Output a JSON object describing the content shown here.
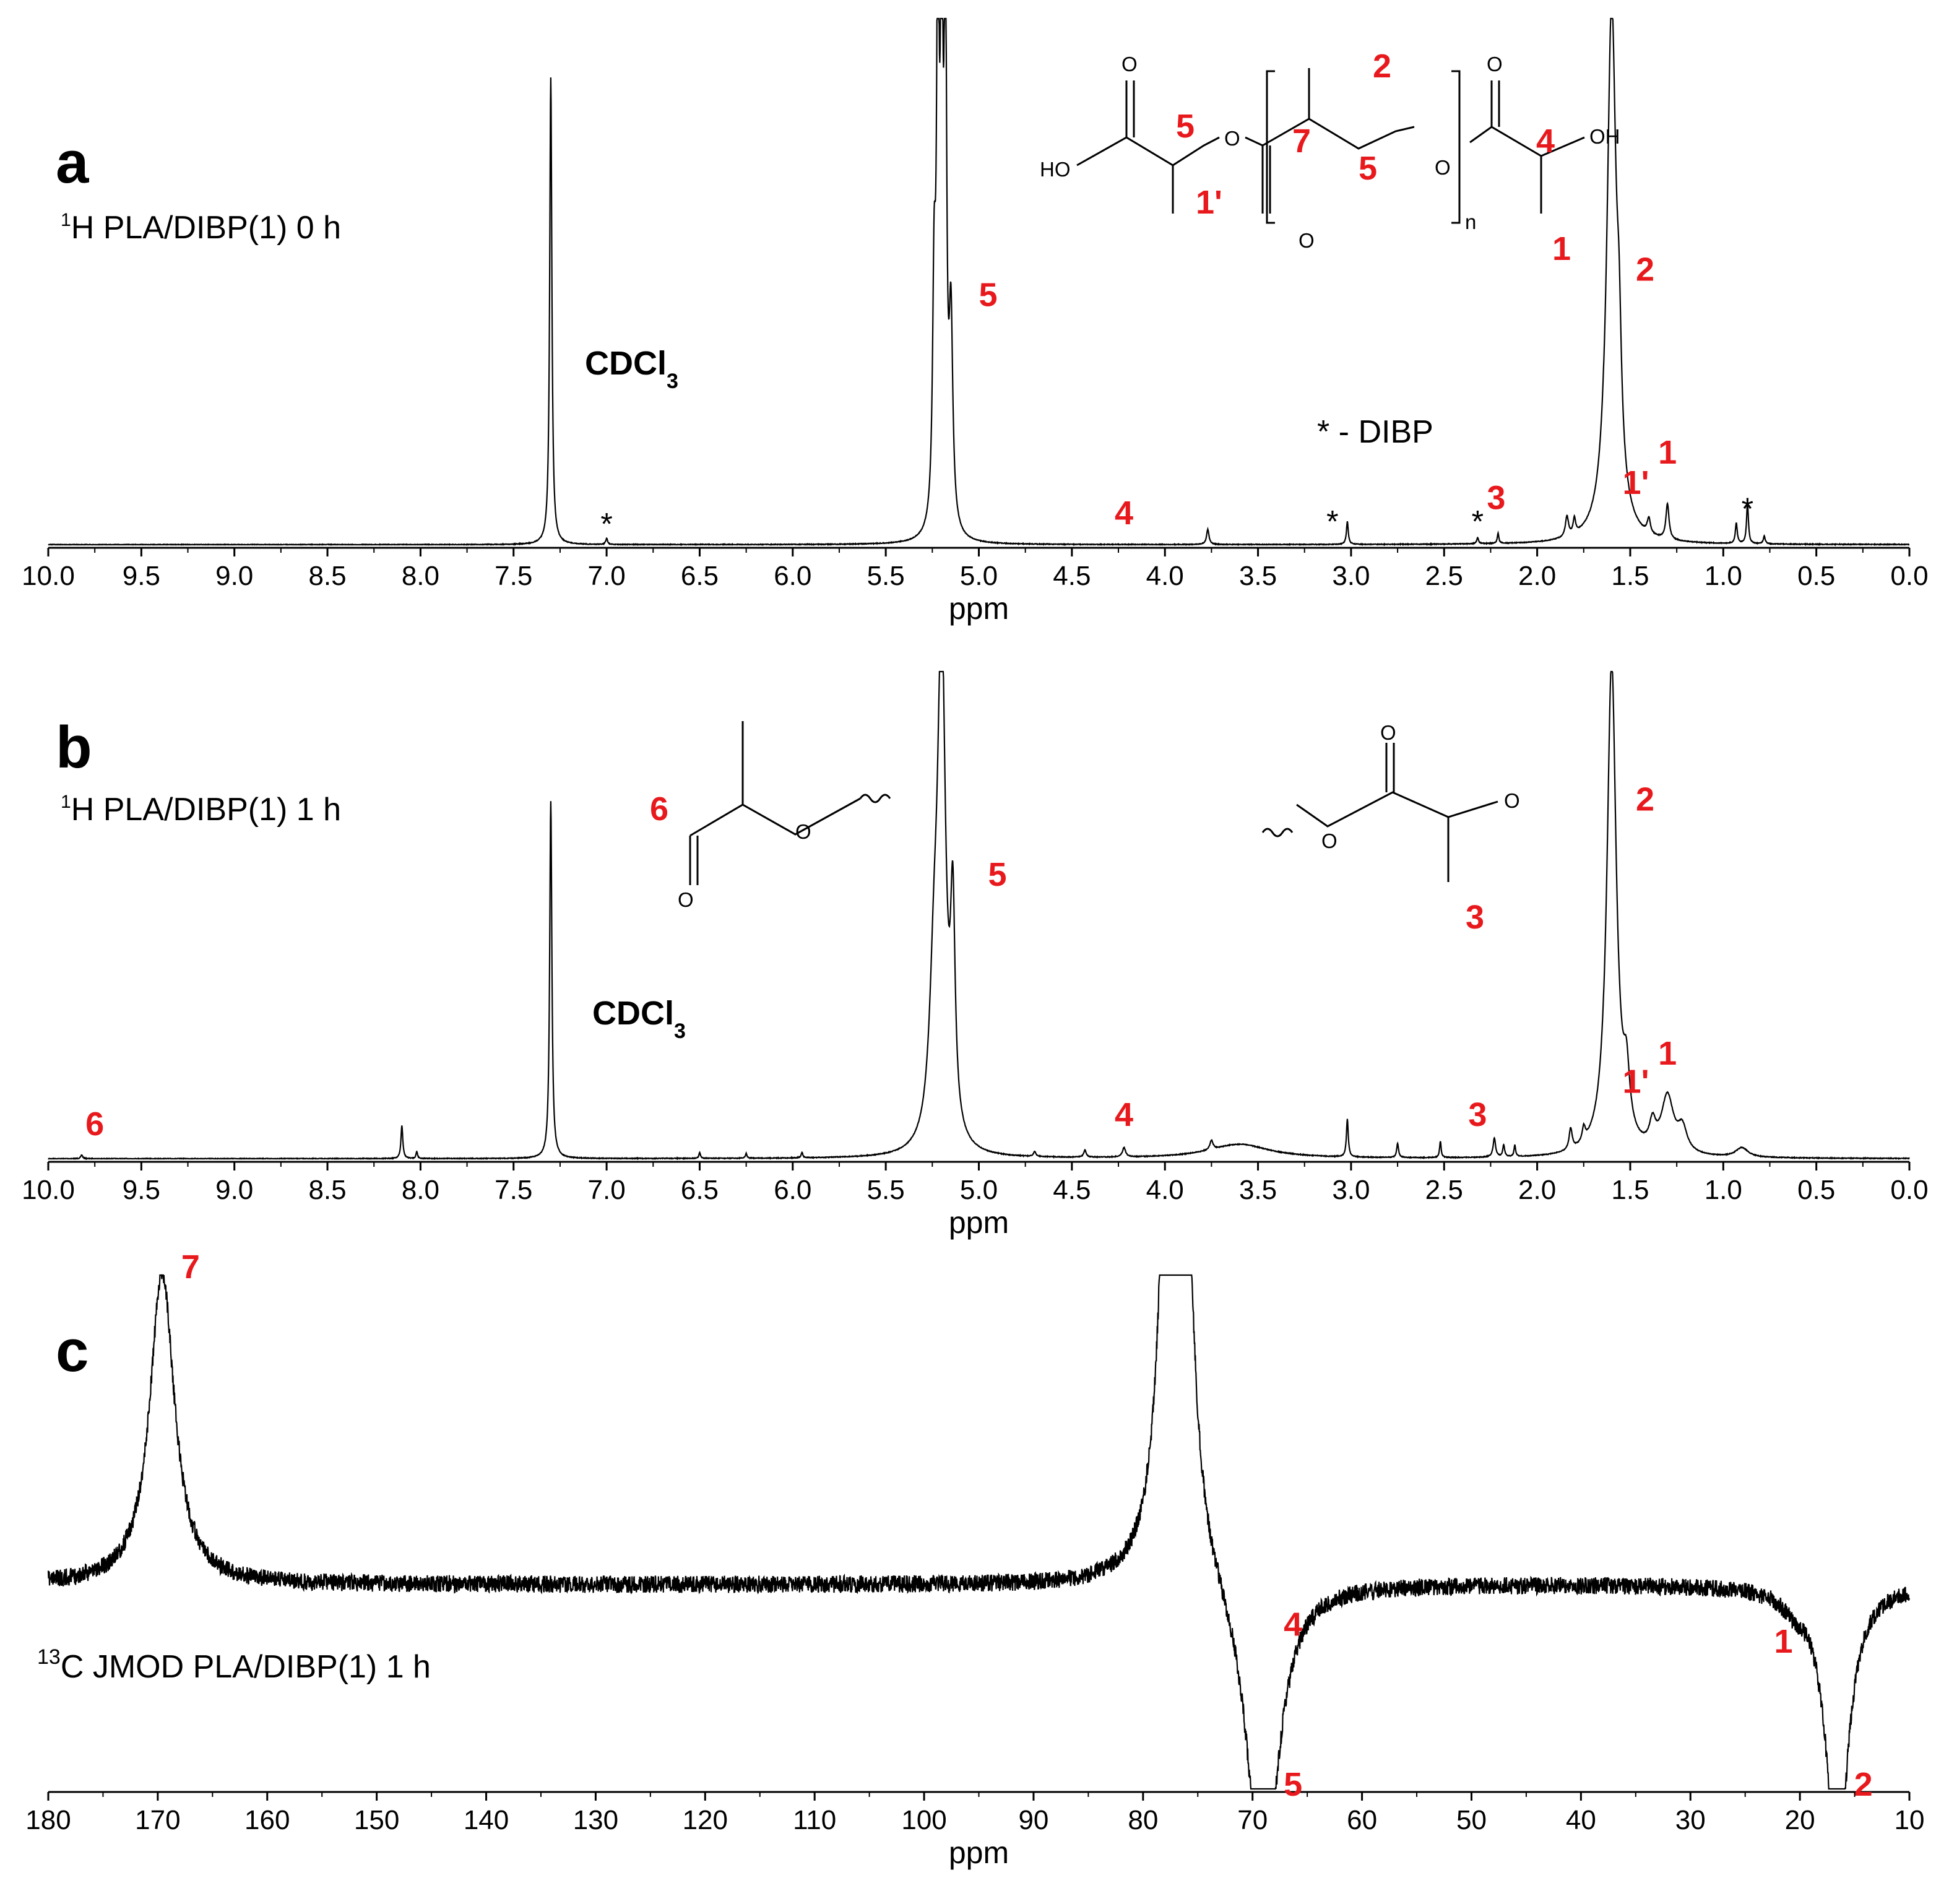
{
  "chart_data": [
    {
      "type": "line",
      "panel": "a",
      "nucleus_sup": "1",
      "subtitle": "H  PLA/DIBP(1)  0 h",
      "xlabel": "ppm",
      "xlim": [
        10.0,
        0.0
      ],
      "xticks": [
        "10.0",
        "9.5",
        "9.0",
        "8.5",
        "8.0",
        "7.5",
        "7.0",
        "6.5",
        "6.0",
        "5.5",
        "5.0",
        "4.5",
        "4.0",
        "3.5",
        "3.0",
        "2.5",
        "2.0",
        "1.5",
        "1.0",
        "0.5",
        "0.0"
      ],
      "peaks": [
        {
          "x": 7.3,
          "h": 0.92,
          "w": 0.007
        },
        {
          "x": 5.22,
          "h": 1.05,
          "w": 0.008
        },
        {
          "x": 5.2,
          "h": 1.05,
          "w": 0.008
        },
        {
          "x": 5.18,
          "h": 1.05,
          "w": 0.008
        },
        {
          "x": 5.24,
          "h": 0.45,
          "w": 0.01
        },
        {
          "x": 5.15,
          "h": 0.4,
          "w": 0.012
        },
        {
          "x": 1.6,
          "h": 1.05,
          "w": 0.03
        },
        {
          "x": 1.56,
          "h": 0.2,
          "w": 0.015
        },
        {
          "x": 1.3,
          "h": 0.07,
          "w": 0.01
        },
        {
          "x": 1.4,
          "h": 0.03,
          "w": 0.01
        },
        {
          "x": 0.87,
          "h": 0.08,
          "w": 0.006
        },
        {
          "x": 0.93,
          "h": 0.04,
          "w": 0.006
        },
        {
          "x": 3.02,
          "h": 0.045,
          "w": 0.006
        },
        {
          "x": 3.77,
          "h": 0.03,
          "w": 0.008
        },
        {
          "x": 2.21,
          "h": 0.02,
          "w": 0.005
        },
        {
          "x": 1.84,
          "h": 0.04,
          "w": 0.01
        },
        {
          "x": 1.8,
          "h": 0.03,
          "w": 0.008
        },
        {
          "x": 7.0,
          "h": 0.012,
          "w": 0.006
        },
        {
          "x": 2.32,
          "h": 0.012,
          "w": 0.006
        },
        {
          "x": 0.78,
          "h": 0.015,
          "w": 0.006
        }
      ],
      "annotations": [
        {
          "text": "5",
          "x": 4.95,
          "y": 0.47,
          "color": "red"
        },
        {
          "text": "4",
          "x": 4.22,
          "y": 0.04,
          "color": "red"
        },
        {
          "text": "3",
          "x": 2.22,
          "y": 0.07,
          "color": "red"
        },
        {
          "text": "2",
          "x": 1.42,
          "y": 0.52,
          "color": "red"
        },
        {
          "text": "1'",
          "x": 1.47,
          "y": 0.1,
          "color": "red"
        },
        {
          "text": "1",
          "x": 1.3,
          "y": 0.16,
          "color": "red"
        },
        {
          "text": "*",
          "x": 7.0,
          "y": 0.02,
          "color": "black"
        },
        {
          "text": "*",
          "x": 3.1,
          "y": 0.025,
          "color": "black"
        },
        {
          "text": "*",
          "x": 2.32,
          "y": 0.025,
          "color": "black"
        },
        {
          "text": "*",
          "x": 0.87,
          "y": 0.05,
          "color": "black"
        }
      ],
      "solvent": "CDCl",
      "solvent_sub": "3",
      "legend_note": "* - DIBP"
    },
    {
      "type": "line",
      "panel": "b",
      "nucleus_sup": "1",
      "subtitle": "H   PLA/DIBP(1) 1 h",
      "xlabel": "ppm",
      "xlim": [
        10.0,
        0.0
      ],
      "xticks": [
        "10.0",
        "9.5",
        "9.0",
        "8.5",
        "8.0",
        "7.5",
        "7.0",
        "6.5",
        "6.0",
        "5.5",
        "5.0",
        "4.5",
        "4.0",
        "3.5",
        "3.0",
        "2.5",
        "2.0",
        "1.5",
        "1.0",
        "0.5",
        "0.0"
      ],
      "peaks": [
        {
          "x": 7.3,
          "h": 0.76,
          "w": 0.007
        },
        {
          "x": 5.2,
          "h": 1.05,
          "w": 0.025
        },
        {
          "x": 5.14,
          "h": 0.45,
          "w": 0.015
        },
        {
          "x": 5.24,
          "h": 0.3,
          "w": 0.03
        },
        {
          "x": 1.6,
          "h": 1.05,
          "w": 0.03
        },
        {
          "x": 1.52,
          "h": 0.12,
          "w": 0.02
        },
        {
          "x": 1.3,
          "h": 0.12,
          "w": 0.04
        },
        {
          "x": 1.22,
          "h": 0.05,
          "w": 0.03
        },
        {
          "x": 1.38,
          "h": 0.05,
          "w": 0.02
        },
        {
          "x": 8.1,
          "h": 0.07,
          "w": 0.006
        },
        {
          "x": 8.02,
          "h": 0.015,
          "w": 0.005
        },
        {
          "x": 3.02,
          "h": 0.08,
          "w": 0.006
        },
        {
          "x": 2.75,
          "h": 0.03,
          "w": 0.006
        },
        {
          "x": 2.52,
          "h": 0.035,
          "w": 0.005
        },
        {
          "x": 2.23,
          "h": 0.04,
          "w": 0.008
        },
        {
          "x": 2.18,
          "h": 0.025,
          "w": 0.006
        },
        {
          "x": 2.12,
          "h": 0.025,
          "w": 0.005
        },
        {
          "x": 4.22,
          "h": 0.02,
          "w": 0.01
        },
        {
          "x": 4.43,
          "h": 0.015,
          "w": 0.008
        },
        {
          "x": 4.7,
          "h": 0.01,
          "w": 0.008
        },
        {
          "x": 3.75,
          "h": 0.02,
          "w": 0.01
        },
        {
          "x": 3.6,
          "h": 0.03,
          "w": 0.2
        },
        {
          "x": 1.82,
          "h": 0.045,
          "w": 0.01
        },
        {
          "x": 1.75,
          "h": 0.03,
          "w": 0.01
        },
        {
          "x": 0.9,
          "h": 0.02,
          "w": 0.04
        },
        {
          "x": 6.5,
          "h": 0.012,
          "w": 0.005
        },
        {
          "x": 6.25,
          "h": 0.01,
          "w": 0.005
        },
        {
          "x": 5.95,
          "h": 0.012,
          "w": 0.005
        },
        {
          "x": 9.82,
          "h": 0.008,
          "w": 0.006
        }
      ],
      "annotations": [
        {
          "text": "6",
          "x": 9.75,
          "y": 0.05,
          "color": "red"
        },
        {
          "text": "5",
          "x": 4.9,
          "y": 0.58,
          "color": "red"
        },
        {
          "text": "4",
          "x": 4.22,
          "y": 0.07,
          "color": "red"
        },
        {
          "text": "3",
          "x": 2.32,
          "y": 0.07,
          "color": "red"
        },
        {
          "text": "2",
          "x": 1.42,
          "y": 0.74,
          "color": "red"
        },
        {
          "text": "1'",
          "x": 1.47,
          "y": 0.14,
          "color": "red"
        },
        {
          "text": "1",
          "x": 1.3,
          "y": 0.2,
          "color": "red"
        }
      ],
      "solvent": "CDCl",
      "solvent_sub": "3"
    },
    {
      "type": "line",
      "panel": "c",
      "nucleus_sup": "13",
      "subtitle": "C JMOD   PLA/DIBP(1) 1 h",
      "xlabel": "ppm",
      "xlim": [
        180,
        10
      ],
      "xticks": [
        "180",
        "170",
        "160",
        "150",
        "140",
        "130",
        "120",
        "110",
        "100",
        "90",
        "80",
        "70",
        "60",
        "50",
        "40",
        "30",
        "20",
        "10"
      ],
      "peaks": [
        {
          "x": 169.6,
          "h": 0.92,
          "w": 0.08
        },
        {
          "x": 77.4,
          "h": 1.2,
          "w": 0.05
        },
        {
          "x": 77.0,
          "h": 1.2,
          "w": 0.05
        },
        {
          "x": 76.6,
          "h": 1.2,
          "w": 0.05
        },
        {
          "x": 69.0,
          "h": -0.83,
          "w": 0.1
        },
        {
          "x": 69.4,
          "h": -0.12,
          "w": 0.08
        },
        {
          "x": 16.6,
          "h": -0.83,
          "w": 0.07
        },
        {
          "x": 20.5,
          "h": -0.04,
          "w": 0.08
        }
      ],
      "annotations": [
        {
          "text": "7",
          "x": 167,
          "y": 0.9,
          "color": "red"
        },
        {
          "text": "4",
          "x": 66.3,
          "y": -0.15,
          "color": "red"
        },
        {
          "text": "5",
          "x": 66.3,
          "y": -0.62,
          "color": "red"
        },
        {
          "text": "1",
          "x": 21.5,
          "y": -0.2,
          "color": "red"
        },
        {
          "text": "2",
          "x": 14.2,
          "y": -0.62,
          "color": "red"
        }
      ]
    }
  ],
  "panels": {
    "a": {
      "letter": "a",
      "sup": "1",
      "subtitle": "H  PLA/DIBP(1)  0 h",
      "solvent": "CDCl",
      "solvent_sub": "3",
      "note": "* - DIBP"
    },
    "b": {
      "letter": "b",
      "sup": "1",
      "subtitle": "H   PLA/DIBP(1) 1 h",
      "solvent": "CDCl",
      "solvent_sub": "3"
    },
    "c": {
      "letter": "c",
      "sup": "13",
      "subtitle": "C JMOD   PLA/DIBP(1) 1 h"
    }
  },
  "structure_a": {
    "atom_o": "O",
    "atom_ho": "HO",
    "atom_oh": "OH",
    "subscript_n": "n",
    "labels": [
      "5",
      "1'",
      "7",
      "2",
      "5",
      "4",
      "1"
    ]
  },
  "structure_b1": {
    "atom_o": "O",
    "label": "6"
  },
  "structure_b2": {
    "atom_o": "O",
    "label": "3"
  }
}
